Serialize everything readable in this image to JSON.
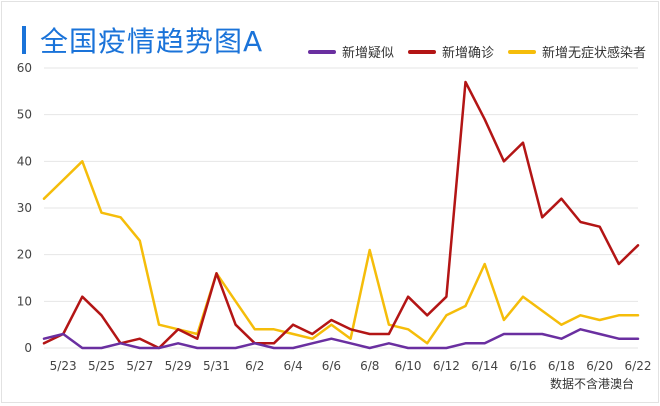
{
  "title": "全国疫情趋势图A",
  "note": "数据不含港澳台",
  "colors": {
    "title": "#1a73d9",
    "grid": "#e6e6e6"
  },
  "chart_data": {
    "type": "line",
    "title": "全国疫情趋势图A",
    "xlabel": "",
    "ylabel": "",
    "ylim": [
      0,
      60
    ],
    "yticks": [
      0,
      10,
      20,
      30,
      40,
      50,
      60
    ],
    "grid": true,
    "legend": "top-right",
    "x": [
      "5/22",
      "5/23",
      "5/24",
      "5/25",
      "5/26",
      "5/27",
      "5/28",
      "5/29",
      "5/30",
      "5/31",
      "6/1",
      "6/2",
      "6/3",
      "6/4",
      "6/5",
      "6/6",
      "6/7",
      "6/8",
      "6/9",
      "6/10",
      "6/11",
      "6/12",
      "6/13",
      "6/14",
      "6/15",
      "6/16",
      "6/17",
      "6/18",
      "6/19",
      "6/20",
      "6/21",
      "6/22"
    ],
    "xticks": [
      "5/23",
      "5/25",
      "5/27",
      "5/29",
      "5/31",
      "6/2",
      "6/4",
      "6/6",
      "6/8",
      "6/10",
      "6/12",
      "6/14",
      "6/16",
      "6/18",
      "6/20",
      "6/22"
    ],
    "series": [
      {
        "name": "新增疑似",
        "color": "#6a2fa0",
        "values": [
          2,
          3,
          0,
          0,
          1,
          0,
          0,
          1,
          0,
          0,
          0,
          1,
          0,
          0,
          1,
          2,
          1,
          0,
          1,
          0,
          0,
          0,
          1,
          1,
          3,
          3,
          3,
          2,
          4,
          3,
          2,
          2
        ]
      },
      {
        "name": "新增确诊",
        "color": "#b31515",
        "values": [
          1,
          3,
          11,
          7,
          1,
          2,
          0,
          4,
          2,
          16,
          5,
          1,
          1,
          5,
          3,
          6,
          4,
          3,
          3,
          11,
          7,
          11,
          57,
          49,
          40,
          44,
          28,
          32,
          27,
          26,
          18,
          22
        ]
      },
      {
        "name": "新增无症状感染者",
        "color": "#f5bd0a",
        "values": [
          32,
          36,
          40,
          29,
          28,
          23,
          5,
          4,
          3,
          16,
          10,
          4,
          4,
          3,
          2,
          5,
          2,
          21,
          5,
          4,
          1,
          7,
          9,
          18,
          6,
          11,
          8,
          5,
          7,
          6,
          7,
          7
        ]
      }
    ]
  }
}
